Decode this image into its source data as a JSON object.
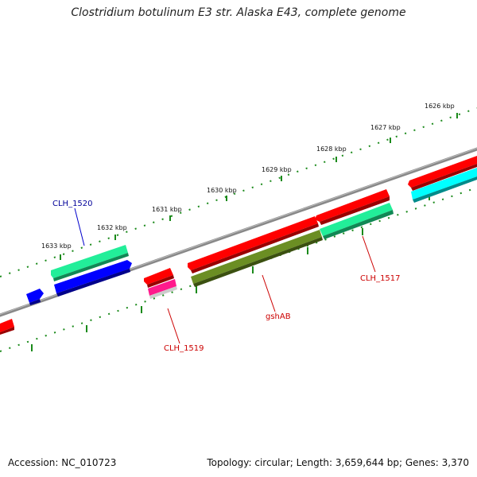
{
  "title": "Clostridium botulinum E3 str. Alaska E43, complete genome",
  "footer": {
    "accession": "Accession: NC_010723",
    "summary": "Topology: circular; Length: 3,659,644 bp; Genes: 3,370"
  },
  "scale_labels": [
    "1626 kbp",
    "1627 kbp",
    "1628 kbp",
    "1629 kbp",
    "1630 kbp",
    "1631 kbp",
    "1632 kbp",
    "1633 kbp"
  ],
  "gene_labels": {
    "clh1520": "CLH_1520",
    "clh1519": "CLH_1519",
    "gshab": "gshAB",
    "clh1517": "CLH_1517"
  },
  "colors": {
    "cds_red": "#ff0000",
    "cds_blue": "#0000ff",
    "cds_green": "#22ee99",
    "cds_cyan": "#00ffff",
    "cds_olive": "#6b8e23",
    "cds_pink": "#ff1a8c",
    "backbone": "#808080",
    "tick": "#1a8a1a"
  }
}
